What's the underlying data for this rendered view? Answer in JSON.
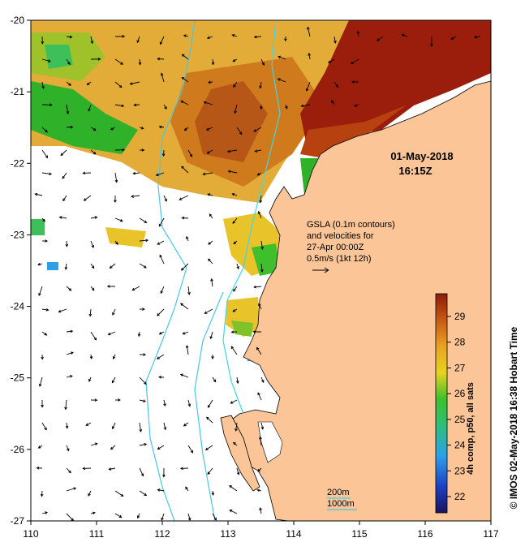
{
  "map": {
    "date": "01-May-2018",
    "time": "16:15Z",
    "x_ticks": [
      "110",
      "111",
      "112",
      "113",
      "114",
      "115",
      "116",
      "117"
    ],
    "y_ticks": [
      "-20",
      "-21",
      "-22",
      "-23",
      "-24",
      "-25",
      "-26",
      "-27"
    ],
    "gsla_note": {
      "line1": "GSLA (0.1m contours)",
      "line2": "and velocities for",
      "line3": "27-Apr 00:00Z",
      "line4": "0.5m/s (1kt 12h)"
    },
    "isobaths": {
      "label_200": "200m",
      "label_1000": "1000m"
    },
    "colorbar": {
      "label": "4h comp, p50, all sats",
      "ticks": [
        "22",
        "23",
        "24",
        "25",
        "26",
        "27",
        "28",
        "29"
      ]
    },
    "credit": "© IMOS 02-May-2018 16:38 Hobart Time",
    "colors": {
      "land": "#fbc597",
      "isobath_200": "#3fd7e8",
      "isobath_1000": "#46c7e8",
      "sst_hot": "#9a1e0b",
      "sst_warm": "#d98a1e",
      "sst_mid": "#e8b71f",
      "sst_cool": "#2fb12a",
      "sst_cold": "#1f5ccf"
    }
  }
}
